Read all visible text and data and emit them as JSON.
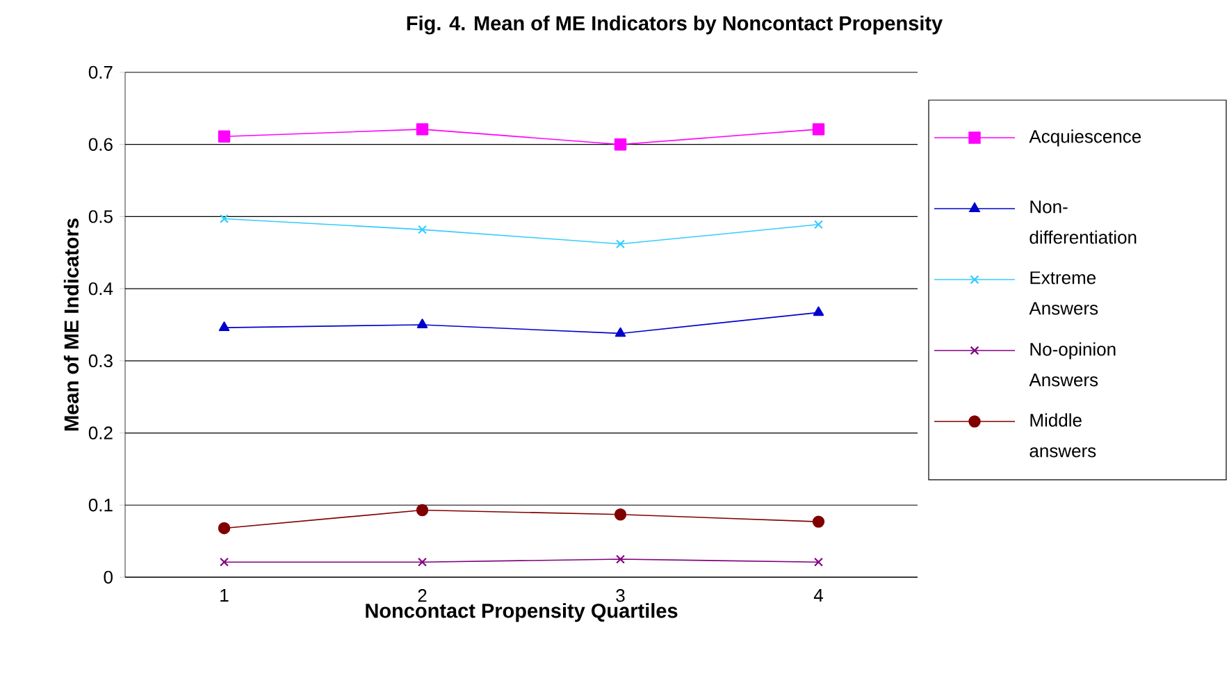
{
  "chart_data": {
    "type": "line",
    "title": "Fig. 4. Mean of ME Indicators by Noncontact Propensity",
    "xlabel": "Noncontact Propensity Quartiles",
    "ylabel": "Mean of ME Indicators",
    "categories": [
      "1",
      "2",
      "3",
      "4"
    ],
    "series": [
      {
        "name": "Acquiescence",
        "color": "#ff00ff",
        "marker": "square",
        "values": [
          0.611,
          0.621,
          0.6,
          0.621
        ]
      },
      {
        "name": "Non-differentiation",
        "color": "#0000cc",
        "marker": "triangle",
        "values": [
          0.346,
          0.35,
          0.338,
          0.367
        ]
      },
      {
        "name": "Extreme Answers",
        "color": "#33ccff",
        "marker": "cross",
        "values": [
          0.497,
          0.482,
          0.462,
          0.489
        ]
      },
      {
        "name": "No-opinion Answers",
        "color": "#800080",
        "marker": "cross",
        "values": [
          0.021,
          0.021,
          0.025,
          0.021
        ]
      },
      {
        "name": "Middle answers",
        "color": "#800000",
        "marker": "circle",
        "values": [
          0.068,
          0.093,
          0.087,
          0.077
        ]
      }
    ],
    "ylim": [
      0,
      0.7
    ],
    "yticks": [
      0,
      0.1,
      0.2,
      0.3,
      0.4,
      0.5,
      0.6,
      0.7
    ],
    "grid": "y",
    "legend": "right"
  }
}
